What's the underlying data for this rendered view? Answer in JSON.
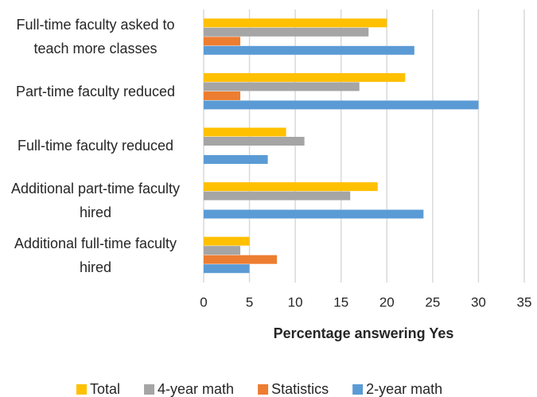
{
  "chart_data": {
    "type": "hbar",
    "xlabel": "Percentage answering Yes",
    "categories": [
      "Full-time faculty asked to teach more classes",
      "Part-time faculty reduced",
      "Full-time faculty reduced",
      "Additional part-time faculty hired",
      "Additional full-time faculty hired"
    ],
    "series": [
      {
        "name": "Total",
        "color": "#ffc000",
        "values": [
          20,
          22,
          9,
          19,
          5
        ]
      },
      {
        "name": "4-year math",
        "color": "#a5a5a5",
        "values": [
          18,
          17,
          11,
          16,
          4
        ]
      },
      {
        "name": "Statistics",
        "color": "#ed7d31",
        "values": [
          4,
          4,
          0,
          0,
          8
        ]
      },
      {
        "name": "2-year math",
        "color": "#5b9bd5",
        "values": [
          23,
          30,
          7,
          24,
          5
        ]
      }
    ],
    "xlim": [
      0,
      35
    ],
    "xticks": [
      0,
      5,
      10,
      15,
      20,
      25,
      30,
      35
    ],
    "grid": true,
    "legend": "bottom"
  }
}
